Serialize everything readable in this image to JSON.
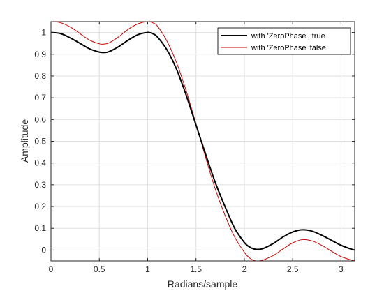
{
  "chart_data": {
    "type": "line",
    "title": "",
    "xlabel": "Radians/sample",
    "ylabel": "Amplitude",
    "xlim": [
      0,
      3.14159
    ],
    "ylim": [
      -0.05,
      1.05
    ],
    "grid": true,
    "legend_position": "top-right",
    "x_ticks": [
      0,
      0.5,
      1,
      1.5,
      2,
      2.5,
      3
    ],
    "x_tick_labels": [
      "0",
      "0.5",
      "1",
      "1.5",
      "2",
      "2.5",
      "3"
    ],
    "y_ticks": [
      0,
      0.1,
      0.2,
      0.3,
      0.4,
      0.5,
      0.6,
      0.7,
      0.8,
      0.9,
      1
    ],
    "y_tick_labels": [
      "0",
      "0.1",
      "0.2",
      "0.3",
      "0.4",
      "0.5",
      "0.6",
      "0.7",
      "0.8",
      "0.9",
      "1"
    ],
    "series": [
      {
        "name": "with 'ZeroPhase', true",
        "color": "#000000",
        "line_width": "thick",
        "x": [
          0,
          0.1,
          0.2,
          0.3,
          0.4,
          0.5,
          0.55,
          0.6,
          0.7,
          0.8,
          0.9,
          1.0,
          1.05,
          1.1,
          1.2,
          1.3,
          1.4,
          1.5,
          1.6,
          1.7,
          1.8,
          1.9,
          2.0,
          2.05,
          2.1,
          2.15,
          2.2,
          2.3,
          2.4,
          2.5,
          2.6,
          2.7,
          2.8,
          2.9,
          3.0,
          3.1,
          3.14159
        ],
        "y": [
          1.0,
          0.995,
          0.975,
          0.95,
          0.925,
          0.91,
          0.908,
          0.912,
          0.935,
          0.965,
          0.99,
          1.0,
          0.995,
          0.98,
          0.92,
          0.83,
          0.71,
          0.575,
          0.44,
          0.31,
          0.2,
          0.1,
          0.035,
          0.015,
          0.005,
          0.003,
          0.008,
          0.03,
          0.06,
          0.083,
          0.093,
          0.087,
          0.068,
          0.045,
          0.022,
          0.005,
          0.0
        ]
      },
      {
        "name": "with 'ZeroPhase' false",
        "color": "#cc0000",
        "line_width": "thin",
        "x": [
          0,
          0.1,
          0.2,
          0.3,
          0.4,
          0.5,
          0.55,
          0.6,
          0.7,
          0.8,
          0.9,
          1.0,
          1.05,
          1.1,
          1.2,
          1.3,
          1.4,
          1.5,
          1.6,
          1.7,
          1.8,
          1.9,
          2.0,
          2.05,
          2.1,
          2.15,
          2.2,
          2.3,
          2.4,
          2.5,
          2.6,
          2.7,
          2.8,
          2.9,
          3.0,
          3.1,
          3.14159
        ],
        "y": [
          1.05,
          1.045,
          1.025,
          0.995,
          0.965,
          0.948,
          0.947,
          0.952,
          0.98,
          1.015,
          1.04,
          1.05,
          1.045,
          1.03,
          0.96,
          0.86,
          0.73,
          0.58,
          0.425,
          0.28,
          0.16,
          0.06,
          -0.01,
          -0.035,
          -0.048,
          -0.05,
          -0.045,
          -0.025,
          0.005,
          0.033,
          0.048,
          0.042,
          0.022,
          -0.005,
          -0.03,
          -0.045,
          -0.05
        ]
      }
    ]
  }
}
